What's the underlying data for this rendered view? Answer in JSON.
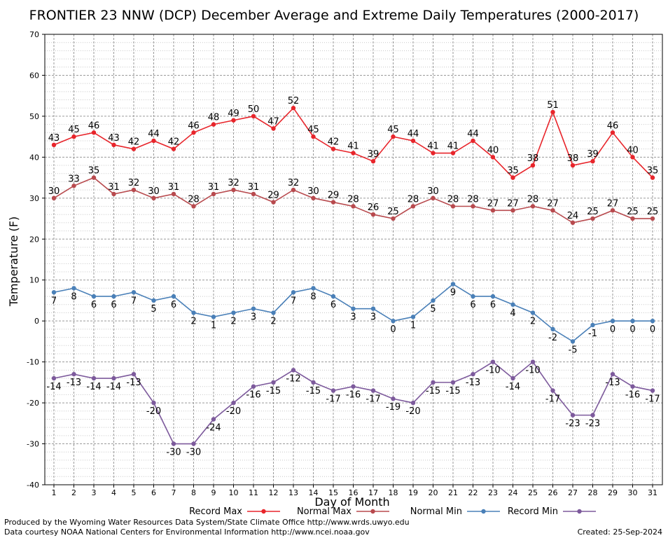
{
  "chart_data": {
    "type": "line",
    "title": "FRONTIER 23 NNW (DCP) December Average and Extreme Daily Temperatures (2000-2017)",
    "xlabel": "Day of Month",
    "ylabel": "Temperature (F)",
    "ylim": [
      -40,
      70
    ],
    "yticks": [
      "-40",
      "-30",
      "-20",
      "-10",
      "0",
      "10",
      "20",
      "30",
      "40",
      "50",
      "60",
      "70"
    ],
    "grid": true,
    "legend_position": "bottom",
    "categories": [
      "1",
      "2",
      "3",
      "4",
      "5",
      "6",
      "7",
      "8",
      "9",
      "10",
      "11",
      "12",
      "13",
      "14",
      "15",
      "16",
      "17",
      "18",
      "19",
      "20",
      "21",
      "22",
      "23",
      "24",
      "25",
      "26",
      "27",
      "28",
      "29",
      "30",
      "31"
    ],
    "series": [
      {
        "name": "Record Max",
        "color": "#e8252b",
        "label_position": "above",
        "values": [
          43,
          45,
          46,
          43,
          42,
          44,
          42,
          46,
          48,
          49,
          50,
          47,
          52,
          45,
          42,
          41,
          39,
          45,
          44,
          41,
          41,
          44,
          40,
          35,
          38,
          51,
          38,
          39,
          46,
          40,
          35
        ]
      },
      {
        "name": "Normal Max",
        "color": "#b84a4e",
        "label_position": "above",
        "values": [
          30,
          33,
          35,
          31,
          32,
          30,
          31,
          28,
          31,
          32,
          31,
          29,
          32,
          30,
          29,
          28,
          26,
          25,
          28,
          30,
          28,
          28,
          27,
          27,
          28,
          27,
          24,
          25,
          27,
          25,
          25
        ]
      },
      {
        "name": "Normal Min",
        "color": "#4a80b8",
        "label_position": "below",
        "values": [
          7,
          8,
          6,
          6,
          7,
          5,
          6,
          2,
          1,
          2,
          3,
          2,
          7,
          8,
          6,
          3,
          3,
          0,
          1,
          5,
          9,
          6,
          6,
          4,
          2,
          -2,
          -5,
          -1,
          0,
          0,
          0
        ]
      },
      {
        "name": "Record Min",
        "color": "#7d5a9c",
        "label_position": "below",
        "values": [
          -14,
          -13,
          -14,
          -14,
          -13,
          -20,
          -30,
          -30,
          -24,
          -20,
          -16,
          -15,
          -12,
          -15,
          -17,
          -16,
          -17,
          -19,
          -20,
          -15,
          -15,
          -13,
          -10,
          -14,
          -10,
          -17,
          -23,
          -23,
          -13,
          -16,
          -17
        ]
      }
    ]
  },
  "footer": {
    "produced_by": "Produced by the Wyoming Water Resources Data System/State Climate Office http://www.wrds.uwyo.edu",
    "courtesy": "Data courtesy NOAA National Centers for Environmental Information http://www.ncei.noaa.gov",
    "created": "Created:  25-Sep-2024"
  }
}
